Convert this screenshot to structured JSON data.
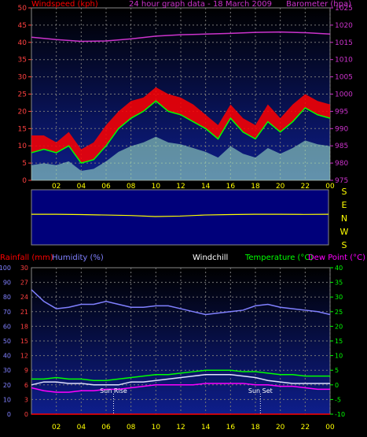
{
  "chart_data": [
    {
      "type": "line",
      "panel": "top",
      "labels": {
        "windspeed": "Windspeed (kph)",
        "title": "24 hour graph data - 18 March 2009",
        "barometer": "Barometer (hpa)"
      },
      "x_ticks": [
        "02",
        "04",
        "06",
        "08",
        "10",
        "12",
        "14",
        "16",
        "18",
        "20",
        "22",
        "00"
      ],
      "y_left_ticks": [
        0,
        5,
        10,
        15,
        20,
        25,
        30,
        35,
        40,
        45,
        50
      ],
      "y_right_ticks": [
        975,
        980,
        985,
        990,
        995,
        1000,
        1005,
        1010,
        1015,
        1020,
        1025
      ],
      "x_range": [
        0,
        24
      ],
      "y_left_range": [
        0,
        50
      ],
      "y_right_range": [
        975,
        1025
      ],
      "series": [
        {
          "name": "Windspeed (kph)",
          "axis": "left",
          "color": "#ff0000",
          "x": [
            0,
            1,
            2,
            3,
            4,
            5,
            6,
            7,
            8,
            9,
            10,
            11,
            12,
            13,
            14,
            15,
            16,
            17,
            18,
            19,
            20,
            21,
            22,
            23,
            24
          ],
          "values": [
            8,
            9,
            8,
            10,
            5,
            6,
            10,
            15,
            18,
            20,
            23,
            20,
            19,
            17,
            15,
            12,
            18,
            14,
            12,
            17,
            14,
            17,
            21,
            19,
            18
          ]
        },
        {
          "name": "Gust",
          "axis": "left",
          "color": "#ff2020",
          "x": [
            0,
            1,
            2,
            3,
            4,
            5,
            6,
            7,
            8,
            9,
            10,
            11,
            12,
            13,
            14,
            15,
            16,
            17,
            18,
            19,
            20,
            21,
            22,
            23,
            24
          ],
          "values": [
            13,
            13,
            11,
            14,
            9,
            11,
            16,
            20,
            23,
            24,
            27,
            25,
            24,
            22,
            19,
            16,
            22,
            18,
            16,
            22,
            18,
            22,
            25,
            23,
            22
          ]
        },
        {
          "name": "Barometer (hpa)",
          "axis": "right",
          "color": "#cc33cc",
          "x": [
            0,
            2,
            4,
            6,
            8,
            10,
            12,
            14,
            16,
            18,
            20,
            22,
            24
          ],
          "values": [
            1016.5,
            1015.8,
            1015.3,
            1015.4,
            1016.0,
            1016.8,
            1017.2,
            1017.4,
            1017.6,
            1017.9,
            1018.0,
            1017.8,
            1017.4
          ]
        }
      ]
    },
    {
      "type": "line",
      "panel": "wind-direction",
      "y_labels": [
        "S",
        "E",
        "N",
        "W",
        "S"
      ],
      "series": [
        {
          "name": "Wind direction",
          "color": "#ffff00",
          "x": [
            0,
            2,
            4,
            6,
            8,
            10,
            12,
            14,
            16,
            18,
            20,
            22,
            24
          ],
          "values": [
            160,
            160,
            162,
            165,
            168,
            175,
            172,
            165,
            162,
            160,
            160,
            161,
            160
          ]
        }
      ]
    },
    {
      "type": "line",
      "panel": "bottom",
      "labels": {
        "rainfall": "Rainfall (mm)",
        "humidity": "Humidity (%)",
        "windchill": "Windchill",
        "temperature": "Temperature (°C)",
        "dew_point": "Dew Point (°C)",
        "sun_rise": "Sun Rise",
        "sun_set": "Sun Set"
      },
      "x_ticks": [
        "02",
        "04",
        "06",
        "08",
        "10",
        "12",
        "14",
        "16",
        "18",
        "20",
        "22",
        "00"
      ],
      "y_humidity_ticks": [
        0,
        10,
        20,
        30,
        40,
        50,
        60,
        70,
        80,
        90,
        100
      ],
      "y_rain_ticks": [
        0,
        3,
        6,
        9,
        12,
        15,
        18,
        21,
        24,
        27,
        30
      ],
      "y_temp_ticks": [
        -10,
        -5,
        0,
        5,
        10,
        15,
        20,
        25,
        30,
        35,
        40
      ],
      "x_range": [
        0,
        24
      ],
      "humidity_range": [
        0,
        100
      ],
      "rain_range": [
        0,
        30
      ],
      "temp_range": [
        -10,
        40
      ],
      "sun_rise_x": 6.6,
      "sun_set_x": 18.4,
      "series": [
        {
          "name": "Humidity (%)",
          "axis": "humidity",
          "color": "#8080ff",
          "x": [
            0,
            1,
            2,
            3,
            4,
            5,
            6,
            7,
            8,
            9,
            10,
            11,
            12,
            13,
            14,
            15,
            16,
            17,
            18,
            19,
            20,
            21,
            22,
            23,
            24
          ],
          "values": [
            85,
            77,
            72,
            73,
            75,
            75,
            77,
            75,
            73,
            73,
            74,
            74,
            72,
            70,
            68,
            69,
            70,
            71,
            74,
            75,
            73,
            72,
            71,
            70,
            68
          ]
        },
        {
          "name": "Temperature (°C)",
          "axis": "temp",
          "color": "#00ff00",
          "x": [
            0,
            1,
            2,
            3,
            4,
            5,
            6,
            7,
            8,
            9,
            10,
            11,
            12,
            13,
            14,
            15,
            16,
            17,
            18,
            19,
            20,
            21,
            22,
            23,
            24
          ],
          "values": [
            2,
            2,
            2.5,
            2,
            2,
            1.5,
            1.5,
            2,
            2.5,
            3,
            3.5,
            3.5,
            4,
            4.5,
            5,
            5,
            5,
            4.5,
            4.5,
            4,
            3.5,
            3.5,
            3,
            3,
            3
          ]
        },
        {
          "name": "Windchill",
          "axis": "temp",
          "color": "#e0e0ff",
          "x": [
            0,
            1,
            2,
            3,
            4,
            5,
            6,
            7,
            8,
            9,
            10,
            11,
            12,
            13,
            14,
            15,
            16,
            17,
            18,
            19,
            20,
            21,
            22,
            23,
            24
          ],
          "values": [
            0,
            1,
            1,
            0.5,
            0.5,
            0,
            0,
            0,
            1,
            1,
            1.5,
            2,
            2.5,
            3,
            3.5,
            3.5,
            3.5,
            3,
            2.5,
            1.5,
            1,
            0.5,
            0.5,
            0.5,
            0.5
          ]
        },
        {
          "name": "Dew Point (°C)",
          "axis": "temp",
          "color": "#ff00ff",
          "x": [
            0,
            1,
            2,
            3,
            4,
            5,
            6,
            7,
            8,
            9,
            10,
            11,
            12,
            13,
            14,
            15,
            16,
            17,
            18,
            19,
            20,
            21,
            22,
            23,
            24
          ],
          "values": [
            -1,
            -2,
            -2.5,
            -2.5,
            -2,
            -2,
            -1.5,
            -1.5,
            -1,
            -0.5,
            0,
            0,
            0,
            0,
            0.5,
            0.5,
            0.5,
            0.5,
            0,
            0,
            -0.5,
            -0.5,
            -1,
            -1.5,
            -1.5
          ]
        },
        {
          "name": "Rainfall (mm)",
          "axis": "rain",
          "color": "#ff0000",
          "x": [
            0,
            24
          ],
          "values": [
            0,
            0
          ]
        }
      ]
    }
  ]
}
